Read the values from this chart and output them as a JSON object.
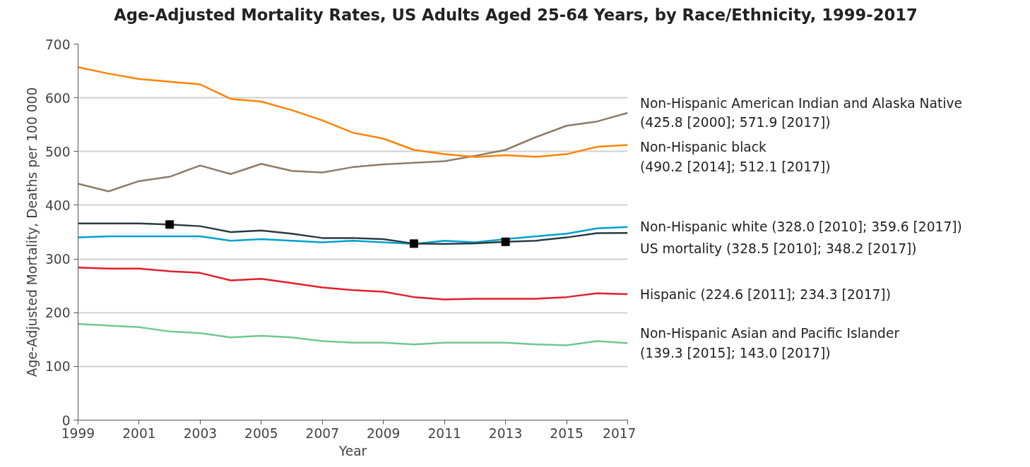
{
  "chart_data": {
    "type": "line",
    "title": "Age-Adjusted Mortality Rates, US Adults Aged 25-64 Years, by Race/Ethnicity, 1999-2017",
    "xlabel": "Year",
    "ylabel": "Age-Adjusted Mortality, Deaths per 100 000",
    "x": [
      1999,
      2000,
      2001,
      2002,
      2003,
      2004,
      2005,
      2006,
      2007,
      2008,
      2009,
      2010,
      2011,
      2012,
      2013,
      2014,
      2015,
      2016,
      2017
    ],
    "series": [
      {
        "name": "Non-Hispanic American Indian and Alaska Native\n(425.8 [2000]; 571.9 [2017])",
        "color": "#8c7b68",
        "values": [
          440,
          425.8,
          445,
          453,
          474,
          458,
          477,
          464,
          461,
          471,
          476,
          479,
          482,
          492,
          503,
          527,
          548,
          556,
          571.9
        ]
      },
      {
        "name": "Non-Hispanic black\n(490.2 [2014]; 512.1 [2017])",
        "color": "#ff8200",
        "values": [
          657,
          645,
          635,
          630,
          625,
          598,
          593,
          577,
          558,
          535,
          524,
          503,
          495,
          490,
          493,
          490.2,
          495,
          509,
          512.1
        ]
      },
      {
        "name": "Non-Hispanic white (328.0 [2010]; 359.6 [2017])",
        "color": "#00a0d0",
        "values": [
          340,
          342,
          342,
          342,
          342,
          334,
          337,
          334,
          331,
          334,
          331,
          328.0,
          334,
          331,
          337,
          342,
          347,
          357,
          359.6
        ]
      },
      {
        "name": "US mortality (328.5 [2010]; 348.2 [2017])",
        "color": "#2a3b40",
        "values": [
          366,
          366,
          366,
          364,
          361,
          350,
          353,
          347,
          339,
          339,
          337,
          328.5,
          328,
          329,
          332,
          334,
          340,
          348,
          348.2
        ]
      },
      {
        "name": "Hispanic (224.6 [2011]; 234.3 [2017])",
        "color": "#e0202a",
        "values": [
          284,
          282,
          282,
          277,
          274,
          260,
          263,
          255,
          247,
          242,
          239,
          229,
          224.6,
          226,
          226,
          226,
          229,
          236,
          234.3
        ]
      },
      {
        "name": "Non-Hispanic Asian and Pacific Islander\n(139.3 [2015]; 143.0 [2017])",
        "color": "#70c890",
        "values": [
          179,
          176,
          173,
          165,
          162,
          154,
          157,
          154,
          147,
          144,
          144,
          141,
          144,
          144,
          144,
          141,
          139.3,
          147,
          143.0
        ]
      },
      {
        "type": "scatter",
        "marker": "square",
        "color": "#000000",
        "x": [
          2002,
          2010,
          2013
        ],
        "values": [
          364,
          328.5,
          332
        ]
      }
    ],
    "xlim": [
      1999,
      2017
    ],
    "xticks": [
      1999,
      2001,
      2003,
      2005,
      2007,
      2009,
      2011,
      2013,
      2015,
      2017
    ],
    "ylim": [
      0,
      700
    ],
    "yticks": [
      0,
      100,
      200,
      300,
      400,
      500,
      600,
      700
    ],
    "grid": "y",
    "marker": "none",
    "line_style": "solid"
  }
}
